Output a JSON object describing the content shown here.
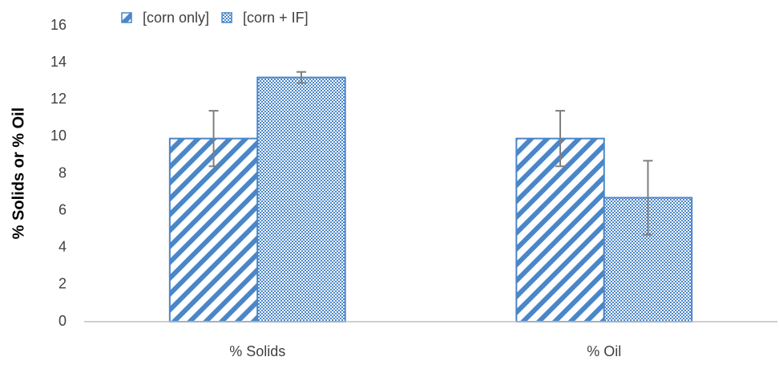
{
  "chart_data": {
    "type": "bar",
    "ylabel": "% Solids or % Oil",
    "categories": [
      "% Solids",
      "% Oil"
    ],
    "series": [
      {
        "name": "[corn only]",
        "color": "#4a86c8",
        "values": [
          9.9,
          9.9
        ],
        "errors": [
          1.5,
          1.5
        ]
      },
      {
        "name": "[corn + IF]",
        "color": "#4a86c8",
        "values": [
          13.2,
          6.7
        ],
        "errors": [
          0.3,
          2.0
        ]
      }
    ],
    "error_color": "#7f7f7f",
    "ylim": [
      0,
      16
    ],
    "yticks": [
      0,
      2,
      4,
      6,
      8,
      10,
      12,
      14,
      16
    ],
    "grid": false,
    "legend": "top-left"
  }
}
